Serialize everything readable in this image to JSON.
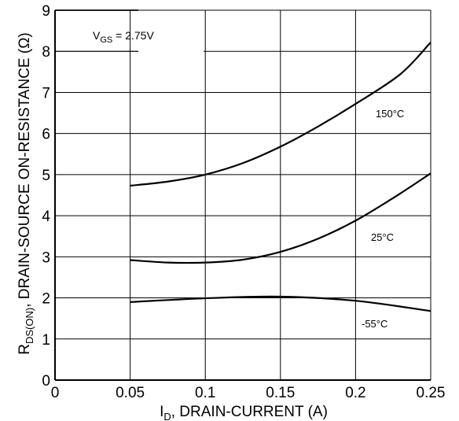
{
  "chart_data": {
    "type": "line",
    "title": "",
    "xlabel": {
      "main": "I",
      "sub": "D",
      "rest": ", DRAIN-CURRENT (A)"
    },
    "ylabel": {
      "main": "R",
      "sub": "DS(ON)",
      "rest": ", DRAIN-SOURCE ON-RESISTANCE (Ω)"
    },
    "xlim": [
      0,
      0.25
    ],
    "ylim": [
      0,
      9
    ],
    "xticks": [
      0,
      0.05,
      0.1,
      0.15,
      0.2,
      0.25
    ],
    "xtick_labels": [
      "0",
      "0.05",
      "0.1",
      "0.15",
      "0.2",
      "0.25"
    ],
    "yticks": [
      0,
      1,
      2,
      3,
      4,
      5,
      6,
      7,
      8,
      9
    ],
    "ytick_labels": [
      "0",
      "1",
      "2",
      "3",
      "4",
      "5",
      "6",
      "7",
      "8",
      "9"
    ],
    "grid": true,
    "condition": {
      "main": "V",
      "sub": "GS",
      "rest": " = 2.75V"
    },
    "series": [
      {
        "name": "150°C",
        "x": [
          0.05,
          0.075,
          0.1,
          0.125,
          0.15,
          0.175,
          0.2,
          0.23,
          0.25
        ],
        "y": [
          4.73,
          4.83,
          5.0,
          5.28,
          5.68,
          6.17,
          6.72,
          7.45,
          8.22
        ]
      },
      {
        "name": "25°C",
        "x": [
          0.05,
          0.075,
          0.1,
          0.125,
          0.15,
          0.175,
          0.2,
          0.225,
          0.25
        ],
        "y": [
          2.92,
          2.86,
          2.86,
          2.93,
          3.12,
          3.44,
          3.88,
          4.43,
          5.03
        ]
      },
      {
        "name": "-55°C",
        "x": [
          0.05,
          0.1,
          0.15,
          0.2,
          0.25
        ],
        "y": [
          1.9,
          1.99,
          2.03,
          1.93,
          1.68
        ]
      }
    ]
  }
}
